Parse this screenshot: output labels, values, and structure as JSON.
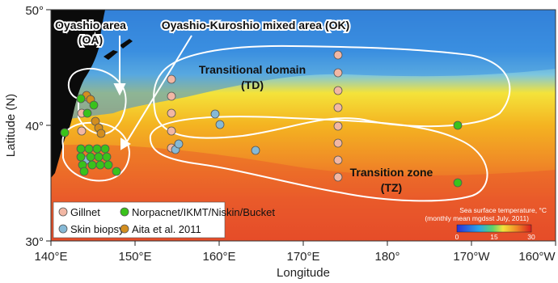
{
  "map": {
    "y_axis_title": "Latitude (N)",
    "x_axis_title": "Longitude",
    "y_ticks": [
      {
        "lat": 50,
        "label": "50°"
      },
      {
        "lat": 40,
        "label": "40°"
      },
      {
        "lat": 30,
        "label": "30°"
      }
    ],
    "x_ticks": [
      {
        "lon": 140,
        "label": "140°E"
      },
      {
        "lon": 150,
        "label": "150°E"
      },
      {
        "lon": 160,
        "label": "160°E"
      },
      {
        "lon": 170,
        "label": "170°E"
      },
      {
        "lon": 180,
        "label": "180°"
      },
      {
        "lon": 190,
        "label": "170°W"
      },
      {
        "lon": 200,
        "label": "160°W"
      }
    ],
    "extent": {
      "lon": [
        140,
        200
      ],
      "lat": [
        30,
        50
      ]
    },
    "regions": [
      {
        "id": "OA",
        "line1": "Oyashio area",
        "line2": "(OA)"
      },
      {
        "id": "OK",
        "line1": "Oyashio-Kuroshio mixed area (OK)",
        "line2": ""
      },
      {
        "id": "TD",
        "line1": "Transitional domain",
        "line2": "(TD)"
      },
      {
        "id": "TZ",
        "line1": "Transition zone",
        "line2": "(TZ)"
      }
    ],
    "colorbar": {
      "title_line1": "Sea surface temperature, °C",
      "title_line2": "(monthly mean mgdsst July, 2011)",
      "ticks": [
        "0",
        "15",
        "30"
      ]
    },
    "colors": {
      "ocean_cold": "#2f7fd6",
      "ocean_mid": "#f2c21b",
      "ocean_warm": "#e8552a",
      "land": "#0b0b0b"
    },
    "legend": [
      {
        "key": "gillnet",
        "label": "Gillnet",
        "color": "#f2b7a4"
      },
      {
        "key": "norpac",
        "label": "Norpacnet/IKMT/Niskin/Bucket",
        "color": "#39c21b"
      },
      {
        "key": "skin",
        "label": "Skin biopsy",
        "color": "#86b9d6"
      },
      {
        "key": "aita",
        "label": "Aita et al. 2011",
        "color": "#d38e1e"
      }
    ]
  }
}
